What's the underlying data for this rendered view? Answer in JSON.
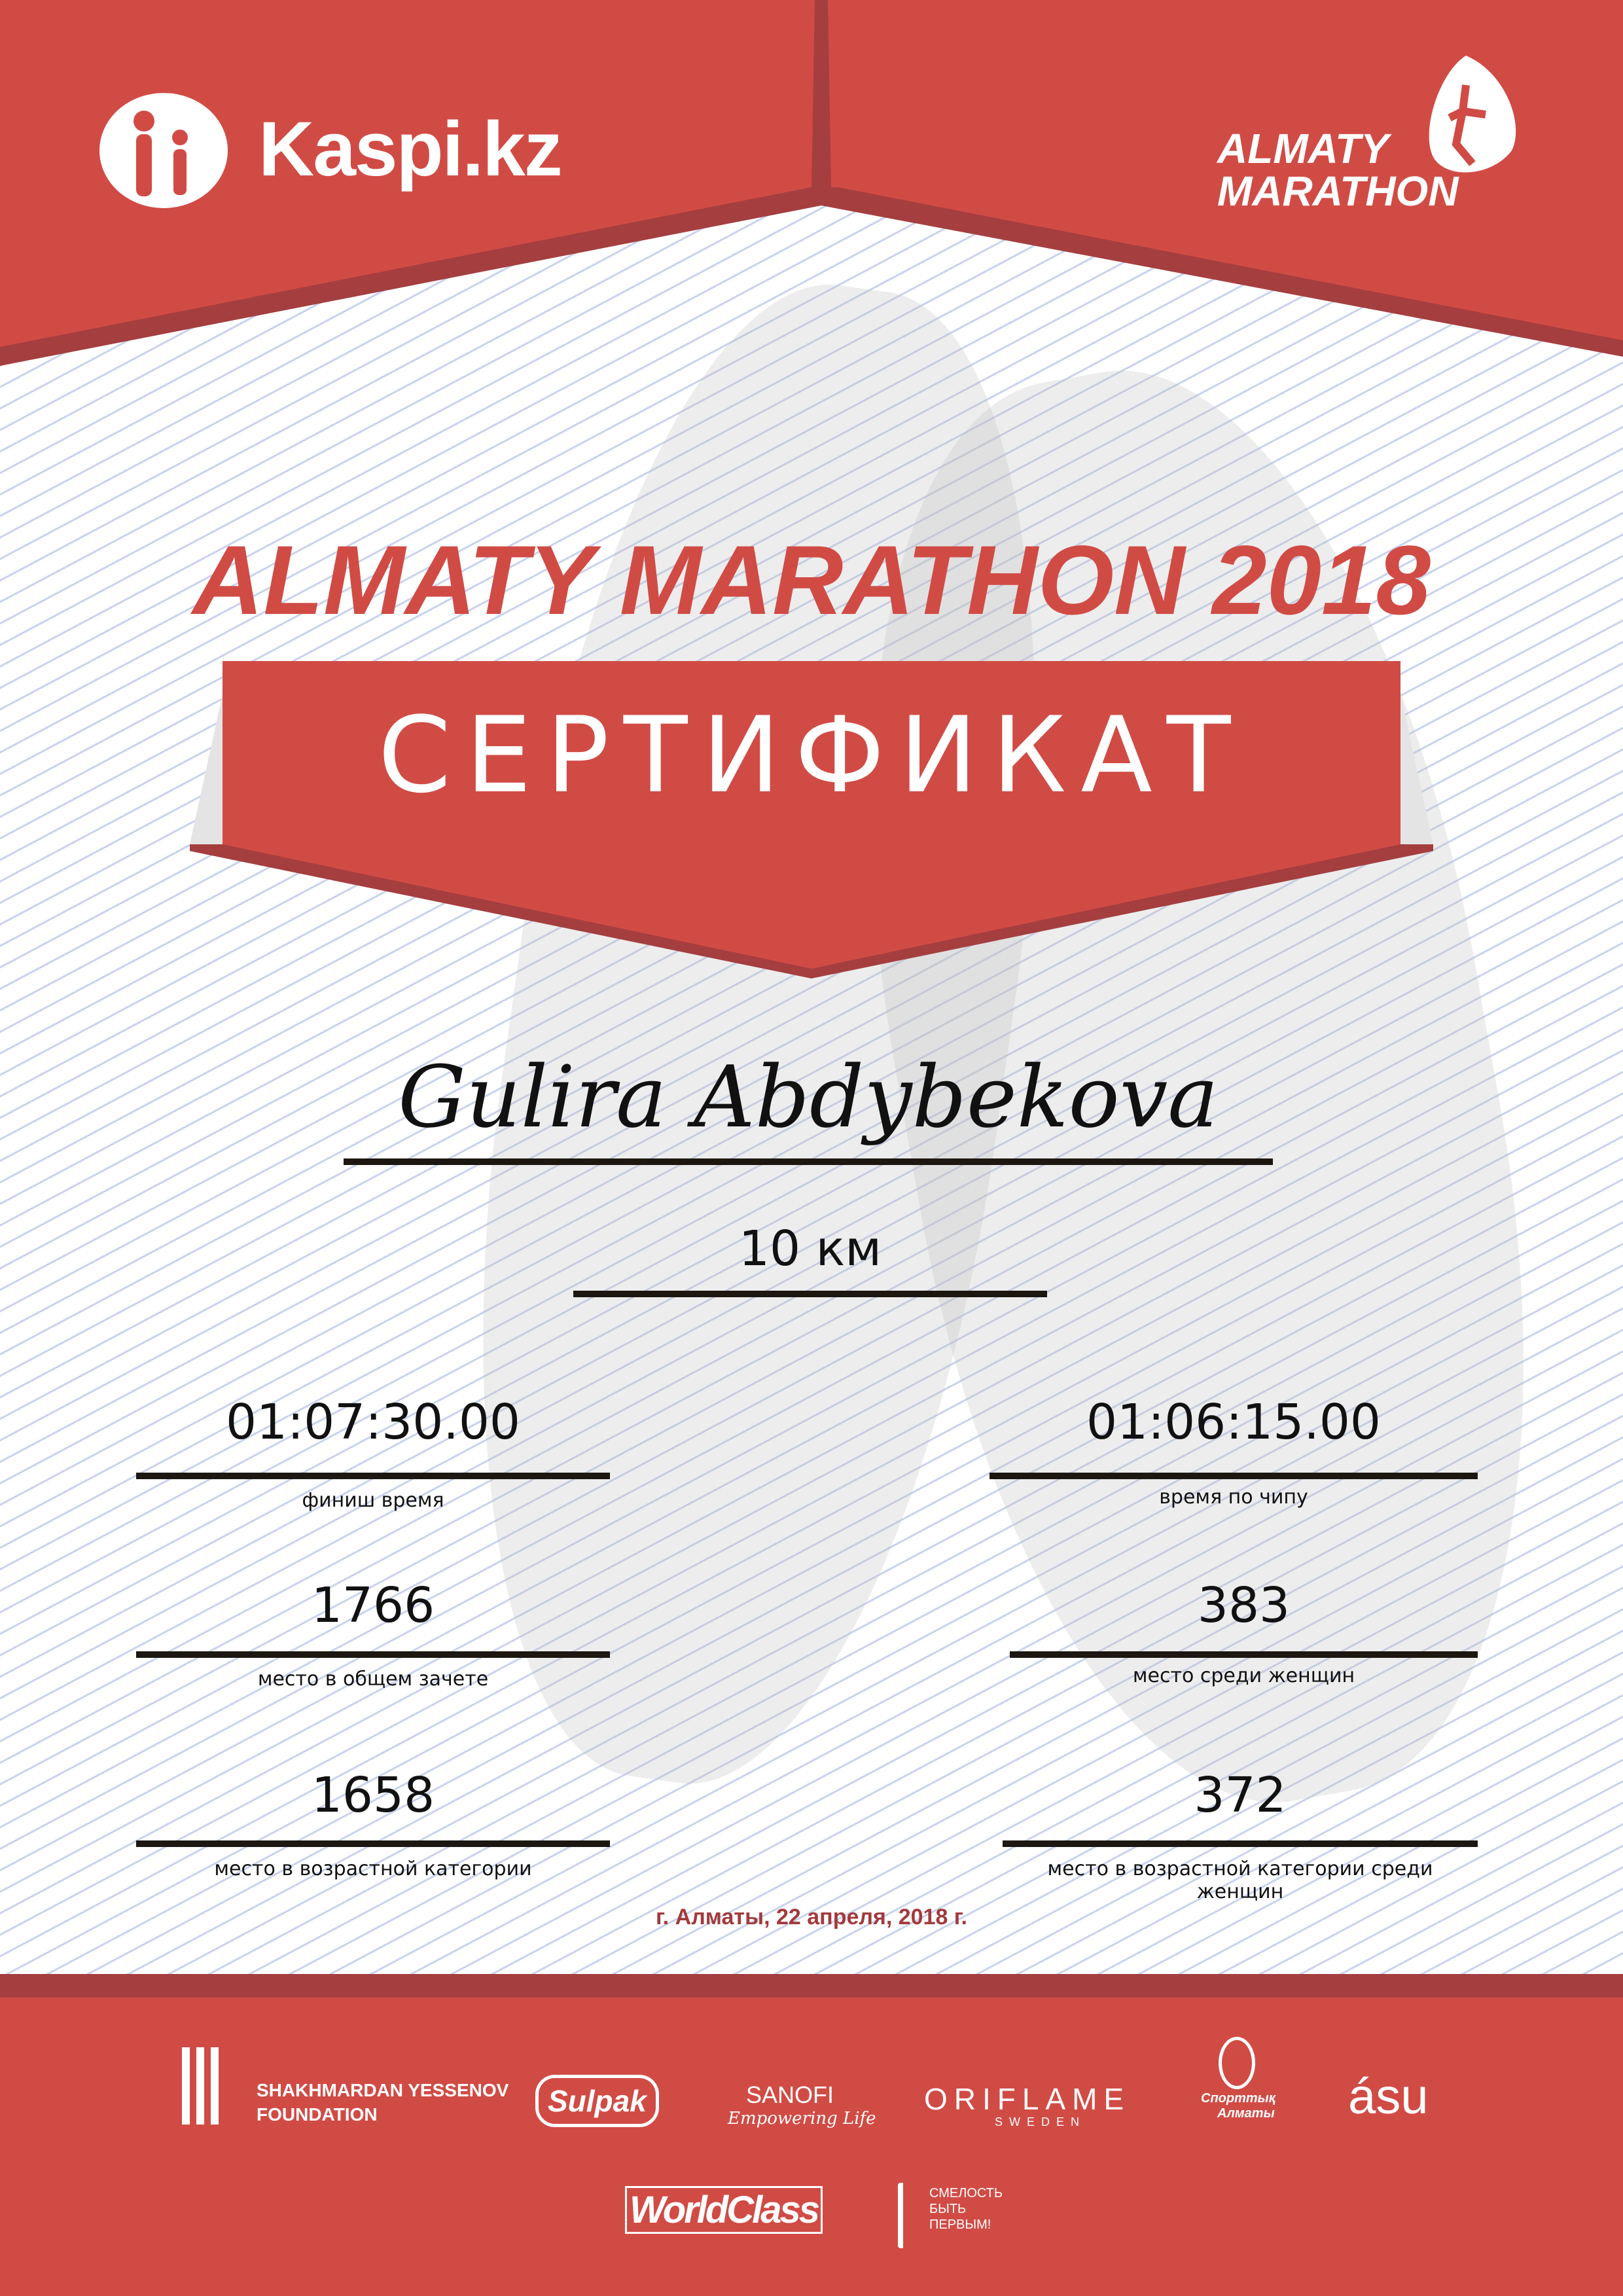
{
  "colors": {
    "brand_red": "#d14b45",
    "dark_red": "#a53e3f",
    "date_red": "#a33a3c"
  },
  "header": {
    "sponsor_logo": "Kaspi.kz",
    "event_logo_line1": "ALMATY",
    "event_logo_line2": "MARATHON"
  },
  "title": "ALMATY MARATHON 2018",
  "banner": "СЕРТИФИКАТ",
  "participant": {
    "name": "Gulira Abdybekova",
    "distance": "10 км"
  },
  "results": [
    {
      "value": "01:07:30.00",
      "label": "финиш время"
    },
    {
      "value": "01:06:15.00",
      "label": "время по чипу"
    },
    {
      "value": "1766",
      "label": "место в общем зачете"
    },
    {
      "value": "383",
      "label": "место среди женщин"
    },
    {
      "value": "1658",
      "label": "место в возрастной категории"
    },
    {
      "value": "372",
      "label": "место в возрастной категории среди женщин"
    }
  ],
  "date": "г. Алматы, 22 апреля, 2018 г.",
  "sponsors": {
    "yessenov_line1": "SHAKHMARDAN YESSENOV",
    "yessenov_line2": "FOUNDATION",
    "sulpak": "Sulpak",
    "sanofi": "SANOFI",
    "sanofi_tagline": "Empowering Life",
    "oriflame": "ORIFLAME",
    "oriflame_sub": "SWEDEN",
    "sport_almaty_line1": "Спорттық",
    "sport_almaty_line2": "Алматы",
    "asu": "ásu",
    "worldclass": "WorldClass",
    "fund_line1": "СМЕЛОСТЬ",
    "fund_line2": "БЫТЬ",
    "fund_line3": "ПЕРВЫМ!"
  }
}
